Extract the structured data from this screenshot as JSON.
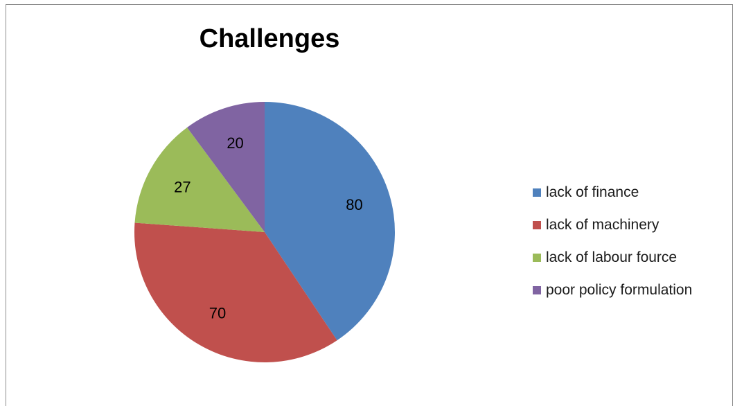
{
  "chart_data": {
    "type": "pie",
    "title": "Challenges",
    "categories": [
      "lack of finance",
      "lack of machinery",
      "lack of labour fource",
      "poor policy formulation"
    ],
    "values": [
      80,
      70,
      27,
      20
    ],
    "colors": [
      "#4f81bd",
      "#c0504d",
      "#9bbb59",
      "#8064a2"
    ],
    "legend_position": "right",
    "start_angle_deg": 0,
    "direction": "clockwise"
  }
}
